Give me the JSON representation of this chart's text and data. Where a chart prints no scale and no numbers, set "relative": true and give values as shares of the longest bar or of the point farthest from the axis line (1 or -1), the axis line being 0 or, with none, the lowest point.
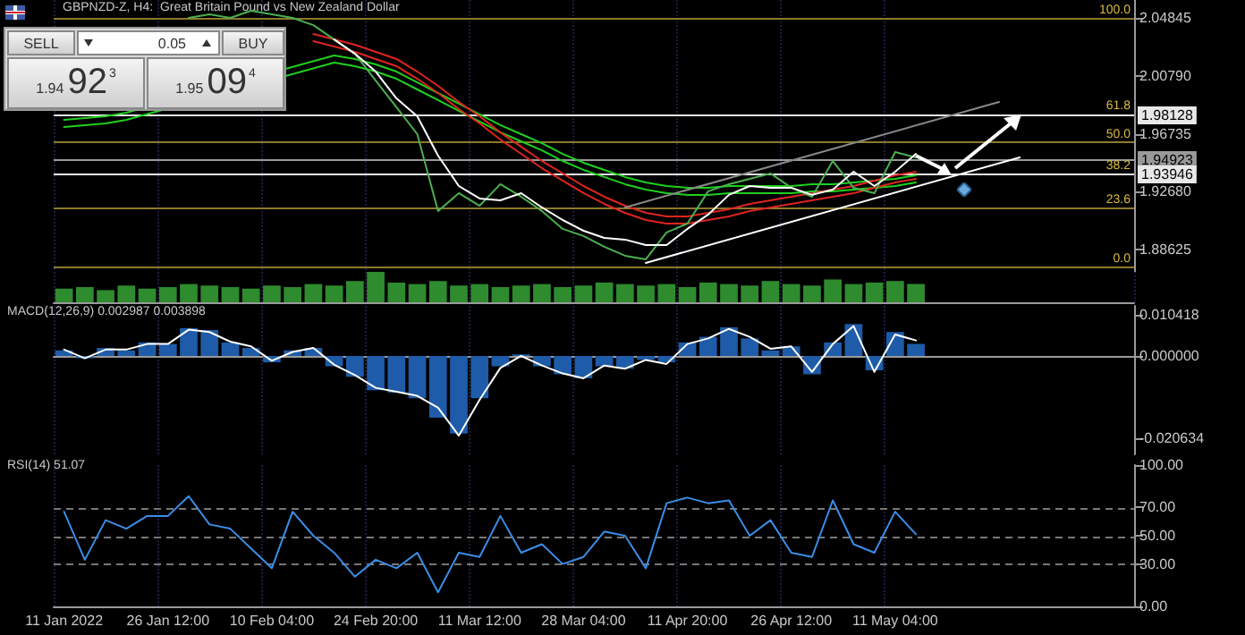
{
  "chart_data": [
    {
      "type": "line",
      "title": "GBPNZD-Z, H4:  Great Britain Pound vs New Zealand Dollar",
      "annotations": [
        "SELL",
        "0.05",
        "BUY",
        "1.94",
        "92",
        "3",
        "1.95",
        "09",
        "4",
        {
          "text": "100.0",
          "y": 2.0485
        },
        {
          "text": "61.8",
          "y": 1.98128
        },
        {
          "text": "50.0",
          "y": 1.9615
        },
        {
          "text": "38.2",
          "y": 1.93946
        },
        {
          "text": "23.6",
          "y": 1.9158
        },
        {
          "text": "0.0",
          "y": 1.8745
        }
      ],
      "categories": [
        null,
        null,
        null,
        null,
        null,
        null,
        null,
        null,
        null,
        null,
        null,
        null,
        null,
        null,
        null,
        null,
        null,
        null,
        null,
        null,
        null,
        null,
        null,
        null,
        null,
        null,
        null,
        null,
        null,
        null,
        null,
        null,
        null,
        null,
        null,
        null,
        null,
        null,
        null,
        null,
        null,
        null,
        null,
        null,
        null,
        null,
        null,
        null,
        null,
        null,
        null,
        null
      ],
      "series": [
        {
          "color": "#1fd01f",
          "values": [
            1.9771,
            1.9784,
            1.9796,
            1.9821,
            null,
            null,
            null,
            null,
            null,
            null,
            null,
            null,
            null,
            2.0222,
            2.0197,
            2.0159,
            2.0109,
            2.0034,
            1.9959,
            1.9884,
            1.9809,
            1.9734,
            1.9671,
            1.9608,
            1.9533,
            1.9471,
            1.9421,
            1.9371,
            1.9333,
            1.9308,
            1.9296,
            1.9296,
            1.9308,
            1.9308,
            1.9308,
            1.9308,
            1.9321,
            1.9321,
            1.9333,
            1.9346,
            1.9358,
            1.9383,
            null,
            null,
            null,
            null,
            null,
            null,
            null,
            null,
            null,
            null
          ]
        },
        {
          "color": "#1fd01f",
          "values": [
            1.9721,
            1.9734,
            1.9746,
            1.9771,
            null,
            null,
            null,
            null,
            null,
            null,
            null,
            null,
            null,
            2.0172,
            2.0147,
            2.0109,
            2.0059,
            1.9984,
            1.9909,
            1.9834,
            1.9759,
            1.9684,
            1.9621,
            1.9558,
            1.9483,
            1.9421,
            1.9371,
            1.9321,
            1.9283,
            1.9258,
            1.9246,
            1.9246,
            1.9258,
            1.9258,
            1.9258,
            1.9258,
            1.9271,
            1.9271,
            1.9283,
            1.9296,
            1.9308,
            1.9333,
            null,
            null,
            null,
            null,
            null,
            null,
            null,
            null,
            null,
            null
          ]
        },
        {
          "color": "#e0241f",
          "values": [
            null,
            null,
            null,
            null,
            null,
            null,
            null,
            null,
            null,
            null,
            null,
            null,
            2.0372,
            2.0334,
            2.0297,
            2.0247,
            2.0197,
            2.0109,
            2.0009,
            1.9896,
            1.9796,
            1.9683,
            1.9583,
            1.9483,
            1.9396,
            1.9308,
            1.9233,
            1.917,
            1.912,
            1.9095,
            1.9095,
            1.912,
            1.9145,
            1.9183,
            1.9208,
            1.9233,
            1.9258,
            1.9283,
            1.9308,
            1.9346,
            1.9383,
            1.9408,
            null,
            null,
            null,
            null,
            null,
            null,
            null,
            null,
            null,
            null
          ]
        },
        {
          "color": "#e0241f",
          "values": [
            null,
            null,
            null,
            null,
            null,
            null,
            null,
            null,
            null,
            null,
            null,
            null,
            2.0322,
            2.0284,
            2.0247,
            2.0197,
            2.0147,
            2.0059,
            1.9959,
            1.9846,
            1.9746,
            1.9633,
            1.9533,
            1.9433,
            1.9346,
            1.9258,
            1.9183,
            1.912,
            1.907,
            1.9045,
            1.9045,
            1.907,
            1.9095,
            1.9133,
            1.9158,
            1.9183,
            1.9208,
            1.9233,
            1.9258,
            1.9296,
            1.9333,
            1.9358,
            null,
            null,
            null,
            null,
            null,
            null,
            null,
            null,
            null,
            null
          ]
        },
        {
          "color": "#4caf50",
          "values": [
            null,
            null,
            null,
            null,
            null,
            null,
            2.0485,
            2.051,
            2.0485,
            2.0535,
            2.051,
            2.0485,
            2.0434,
            2.0334,
            2.0234,
            2.0046,
            1.9859,
            1.9671,
            1.9133,
            1.9258,
            1.917,
            1.9321,
            1.9233,
            1.9133,
            1.9008,
            1.8958,
            1.8883,
            1.882,
            1.8795,
            1.8983,
            1.9045,
            1.9271,
            1.9321,
            1.9358,
            1.9396,
            1.9296,
            1.9233,
            1.9483,
            1.9296,
            1.9258,
            1.9546,
            1.9508,
            null,
            null,
            null,
            null,
            null,
            null,
            null,
            null,
            null,
            null
          ]
        },
        {
          "color": "#ffffff",
          "values": [
            null,
            null,
            null,
            null,
            null,
            null,
            null,
            null,
            null,
            null,
            null,
            null,
            null,
            2.0334,
            2.0234,
            2.0109,
            1.9921,
            1.9796,
            1.9521,
            1.9308,
            1.9221,
            1.9208,
            1.9258,
            1.9158,
            1.907,
            1.8995,
            1.8945,
            1.8933,
            1.8895,
            1.8895,
            1.9008,
            1.9108,
            1.9246,
            1.9308,
            1.9296,
            1.9296,
            1.9246,
            1.9283,
            1.9408,
            1.9308,
            1.9408,
            1.9533,
            null,
            null,
            null,
            null,
            null,
            null,
            null,
            null,
            null,
            null
          ]
        },
        {
          "color": "#ffffff",
          "values": [
            null,
            null,
            null,
            null,
            null,
            null,
            null,
            null,
            null,
            null,
            null,
            null,
            null,
            null,
            null,
            null,
            null,
            null,
            null,
            null,
            null,
            null,
            null,
            null,
            null,
            null,
            null,
            null,
            1.877,
            null,
            null,
            null,
            null,
            null,
            null,
            null,
            null,
            null,
            null,
            null,
            null,
            null,
            null,
            null,
            null,
            null,
            1.9508,
            null,
            null,
            null,
            null,
            null
          ]
        },
        {
          "color": "#8a8a8a",
          "values": [
            null,
            null,
            null,
            null,
            null,
            null,
            null,
            null,
            null,
            null,
            null,
            null,
            null,
            null,
            null,
            null,
            null,
            null,
            null,
            null,
            null,
            null,
            null,
            null,
            null,
            null,
            null,
            1.9158,
            null,
            null,
            null,
            null,
            null,
            null,
            null,
            null,
            null,
            null,
            null,
            null,
            null,
            null,
            null,
            null,
            null,
            1.9896,
            null,
            null,
            null,
            null,
            null,
            null
          ]
        }
      ],
      "ylim": [
        1.8707,
        2.061
      ],
      "yticks": [
        2.04845,
        {
          "value": 2.0079,
          "label": "2.00790"
        },
        1.96735,
        {
          "value": 1.9268,
          "label": "1.92680"
        },
        1.88625
      ],
      "ref_lines": [
        {
          "axis": "y",
          "value": 2.0485,
          "color": "#8c7a2c"
        },
        {
          "axis": "y",
          "value": 1.9615,
          "color": "#8c7a2c"
        },
        {
          "axis": "y",
          "value": 1.9158,
          "color": "#8c7a2c"
        },
        {
          "axis": "y",
          "value": 1.8745,
          "color": "#8c7a2c"
        },
        {
          "axis": "y",
          "value": 1.98128,
          "label": "1.98128",
          "color": "#e8e8e8"
        },
        {
          "axis": "y",
          "value": 1.94923,
          "label": "1.94923",
          "color": "#9a9a9a"
        },
        {
          "axis": "y",
          "value": 1.93946,
          "label": "1.93946",
          "color": "#e8e8e8"
        }
      ],
      "grid": "x",
      "marker": "none",
      "line_style": "solid",
      "tick_labels": "y"
    },
    {
      "type": "bar",
      "relative": true,
      "color": "#2e8b2e",
      "categories": [
        null,
        null,
        null,
        null,
        null,
        null,
        null,
        null,
        null,
        null,
        null,
        null,
        null,
        null,
        null,
        null,
        null,
        null,
        null,
        null,
        null,
        null,
        null,
        null,
        null,
        null,
        null,
        null,
        null,
        null,
        null,
        null,
        null,
        null,
        null,
        null,
        null,
        null,
        null,
        null,
        null,
        null,
        null,
        null,
        null,
        null,
        null,
        null,
        null,
        null,
        null,
        null
      ],
      "values": [
        0.45,
        0.5,
        0.4,
        0.55,
        0.45,
        0.5,
        0.6,
        0.55,
        0.5,
        0.45,
        0.55,
        0.5,
        0.6,
        0.55,
        0.7,
        1,
        0.65,
        0.6,
        0.7,
        0.55,
        0.6,
        0.5,
        0.55,
        0.6,
        0.5,
        0.55,
        0.65,
        0.6,
        0.55,
        0.6,
        0.5,
        0.65,
        0.6,
        0.55,
        0.7,
        0.6,
        0.55,
        0.75,
        0.6,
        0.65,
        0.7,
        0.6,
        null,
        null,
        null,
        null,
        null,
        null,
        null,
        null,
        null,
        null
      ],
      "grid": "x",
      "tick_labels": false
    },
    {
      "type": "bar",
      "title": "MACD(12,26,9) 0.002987 0.003898",
      "categories": [
        null,
        null,
        null,
        null,
        null,
        null,
        null,
        null,
        null,
        null,
        null,
        null,
        null,
        null,
        null,
        null,
        null,
        null,
        null,
        null,
        null,
        null,
        null,
        null,
        null,
        null,
        null,
        null,
        null,
        null,
        null,
        null,
        null,
        null,
        null,
        null,
        null,
        null,
        null,
        null,
        null,
        null,
        null,
        null,
        null,
        null,
        null,
        null,
        null,
        null,
        null,
        null
      ],
      "series": [
        {
          "color": "#1e5ba8",
          "values": [
            0.0014,
            -0.0006,
            0.002,
            0.0014,
            0.0034,
            0.003,
            0.007,
            0.0065,
            0.0034,
            0.002,
            -0.0016,
            0.0014,
            0.002,
            -0.0026,
            -0.0052,
            -0.0086,
            -0.0092,
            -0.0106,
            -0.0155,
            -0.0195,
            -0.0106,
            -0.0026,
            0.0004,
            -0.0026,
            -0.0046,
            -0.0056,
            -0.0026,
            -0.0032,
            -0.001,
            -0.0016,
            0.0034,
            0.0048,
            0.0072,
            0.0044,
            0.0014,
            0.0024,
            -0.0046,
            0.0034,
            0.008,
            -0.0036,
            0.006,
            0.003,
            null,
            null,
            null,
            null,
            null,
            null,
            null,
            null,
            null,
            null
          ]
        },
        {
          "type": "line",
          "color": "#ffffff",
          "values": [
            0.0016,
            -0.0006,
            0.0016,
            0.0016,
            0.003,
            0.003,
            0.0066,
            0.006,
            0.0036,
            0.0024,
            -0.0012,
            0.001,
            0.002,
            -0.0022,
            -0.0048,
            -0.008,
            -0.009,
            -0.01,
            -0.013,
            -0.02,
            -0.011,
            -0.003,
            0.0,
            -0.0024,
            -0.0044,
            -0.0056,
            -0.0024,
            -0.0032,
            -0.001,
            -0.002,
            0.003,
            0.0044,
            0.0068,
            0.0048,
            0.0018,
            0.0024,
            -0.004,
            0.003,
            0.0075,
            -0.004,
            0.0054,
            0.0039,
            null,
            null,
            null,
            null,
            null,
            null,
            null,
            null,
            null,
            null
          ]
        }
      ],
      "ylim": [
        -0.0247,
        0.01257
      ],
      "yticks": [
        0.010418,
        {
          "value": 0,
          "label": "0.000000"
        },
        -0.020634
      ],
      "grid": "x",
      "marker": "none",
      "line_style": "solid",
      "tick_labels": "y"
    },
    {
      "type": "line",
      "title": "RSI(14) 51.07",
      "color": "#3a8ee6",
      "categories": [
        "11 Jan 2022",
        null,
        null,
        null,
        null,
        "26 Jan 12:00",
        null,
        null,
        null,
        null,
        "10 Feb 04:00",
        null,
        null,
        null,
        null,
        "24 Feb 20:00",
        null,
        null,
        null,
        null,
        "11 Mar 12:00",
        null,
        null,
        null,
        null,
        "28 Mar 04:00",
        null,
        null,
        null,
        null,
        "11 Apr 20:00",
        null,
        null,
        null,
        null,
        "26 Apr 12:00",
        null,
        null,
        null,
        null,
        "11 May 04:00",
        null,
        null,
        null,
        null,
        null,
        null,
        null,
        null,
        null,
        null,
        null
      ],
      "values": [
        67,
        33,
        61,
        55,
        64,
        64,
        78,
        58,
        55,
        41,
        27,
        67,
        50,
        38,
        21,
        33,
        27,
        38,
        10,
        38,
        35,
        64,
        38,
        44,
        30,
        35,
        53,
        50,
        27,
        73,
        77,
        73,
        75,
        50,
        61,
        38,
        35,
        75,
        44,
        38,
        67,
        51,
        null,
        null,
        null,
        null,
        null,
        null,
        null,
        null,
        null,
        null
      ],
      "ylim": [
        0,
        100
      ],
      "yticks": [
        {
          "value": 0,
          "label": "0.00"
        },
        {
          "value": 30,
          "label": "30.00"
        },
        {
          "value": 50,
          "label": "50.00"
        },
        {
          "value": 70,
          "label": "70.00"
        },
        {
          "value": 100,
          "label": "100.00"
        }
      ],
      "ref_lines": [
        {
          "axis": "y",
          "value": 70,
          "color": "#777777",
          "line_style": "dashed"
        },
        {
          "axis": "y",
          "value": 50,
          "color": "#777777",
          "line_style": "dashed"
        },
        {
          "axis": "y",
          "value": 30,
          "color": "#777777",
          "line_style": "dashed"
        }
      ],
      "grid": "x",
      "marker": "none",
      "line_style": "solid"
    }
  ]
}
